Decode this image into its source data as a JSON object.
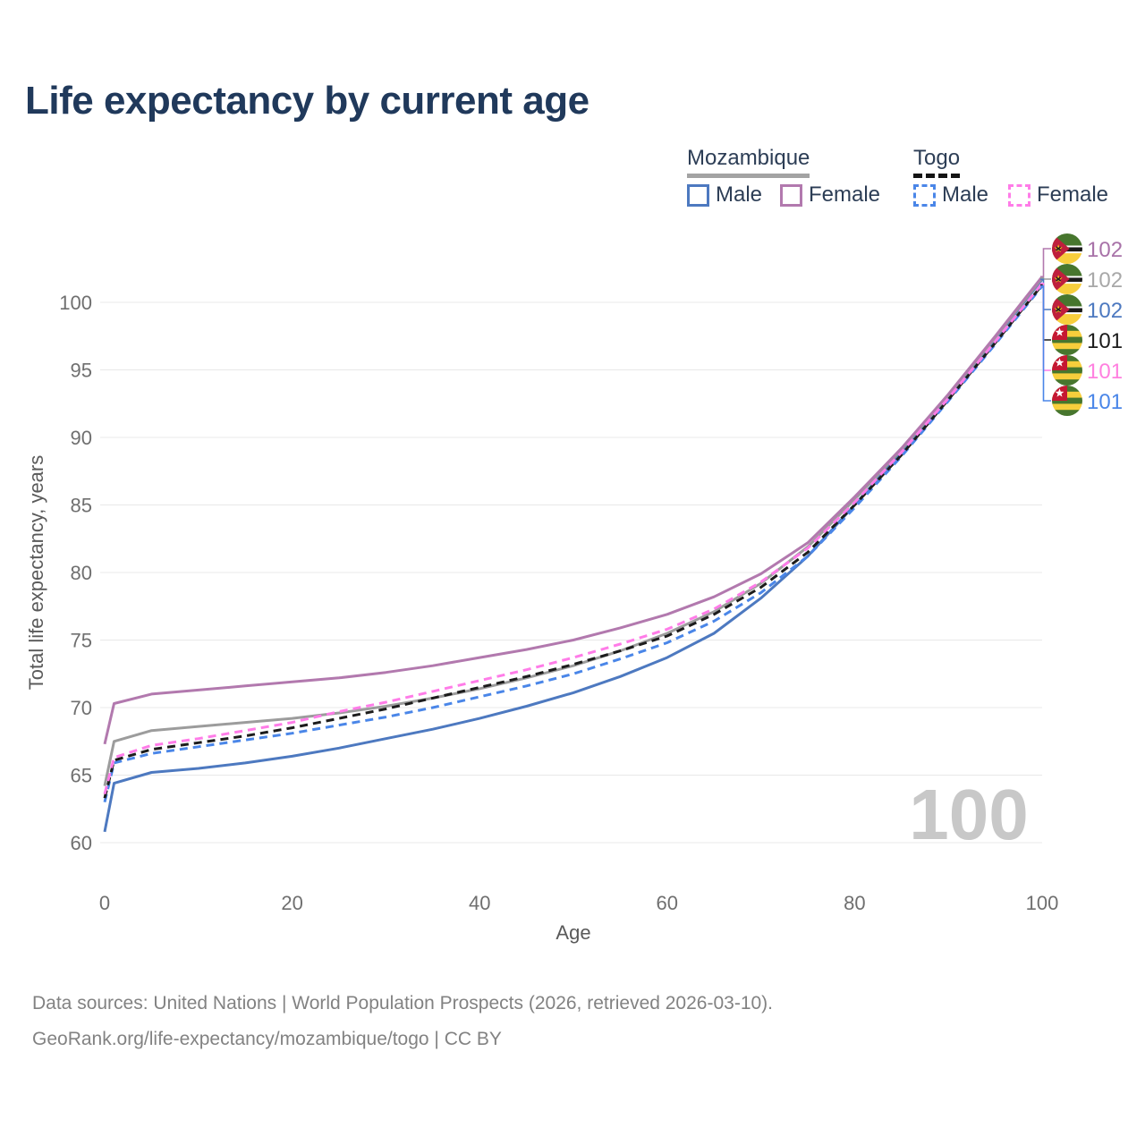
{
  "title": "Life expectancy by current age",
  "legend": {
    "groups": [
      {
        "name": "Mozambique",
        "line_style": "solid",
        "line_color": "#a3a3a3",
        "items": [
          {
            "label": "Male",
            "color": "#4d79c0",
            "dashed": false
          },
          {
            "label": "Female",
            "color": "#b279ae",
            "dashed": false
          }
        ]
      },
      {
        "name": "Togo",
        "line_style": "dashed",
        "line_color": "#141414",
        "items": [
          {
            "label": "Male",
            "color": "#4a86e8",
            "dashed": true
          },
          {
            "label": "Female",
            "color": "#ff7ce8",
            "dashed": true
          }
        ]
      }
    ]
  },
  "watermark": "100",
  "footer": {
    "line1": "Data sources: United Nations | World Population Prospects (2026, retrieved 2026-03-10).",
    "line2": "GeoRank.org/life-expectancy/mozambique/togo | CC BY"
  },
  "chart_data": {
    "type": "line",
    "title": "Life expectancy by current age",
    "xlabel": "Age",
    "ylabel": "Total life expectancy, years",
    "xlim": [
      0,
      100
    ],
    "ylim": [
      60,
      102.5
    ],
    "x_ticks": [
      0,
      20,
      40,
      60,
      80,
      100
    ],
    "y_ticks": [
      60,
      65,
      70,
      75,
      80,
      85,
      90,
      95,
      100
    ],
    "grid": "horizontal-only",
    "legend_position": "top-right",
    "x": [
      0,
      1,
      5,
      10,
      15,
      20,
      25,
      30,
      35,
      40,
      45,
      50,
      55,
      60,
      65,
      70,
      75,
      80,
      85,
      90,
      95,
      100
    ],
    "series": [
      {
        "id": "moz_female",
        "name": "Mozambique Female",
        "country": "mozambique",
        "color": "#b279ae",
        "dashed": false,
        "end_label": "102",
        "end_label_color": "#a872a8",
        "values": [
          67.3,
          70.3,
          71.0,
          71.3,
          71.6,
          71.9,
          72.2,
          72.6,
          73.1,
          73.7,
          74.3,
          75.0,
          75.9,
          76.9,
          78.2,
          79.9,
          82.2,
          85.6,
          89.2,
          93.2,
          97.5,
          101.9
        ]
      },
      {
        "id": "moz_total",
        "name": "Mozambique Total",
        "country": "mozambique",
        "color": "#9c9c9c",
        "dashed": false,
        "end_label": "102",
        "end_label_color": "#a8a8a8",
        "values": [
          64.2,
          67.5,
          68.3,
          68.6,
          68.9,
          69.2,
          69.6,
          70.1,
          70.7,
          71.4,
          72.2,
          73.1,
          74.2,
          75.5,
          77.1,
          79.2,
          81.9,
          85.4,
          89.1,
          93.1,
          97.4,
          101.8
        ]
      },
      {
        "id": "moz_male",
        "name": "Mozambique Male",
        "country": "mozambique",
        "color": "#4d79c0",
        "dashed": false,
        "end_label": "102",
        "end_label_color": "#4d79c0",
        "values": [
          60.8,
          64.4,
          65.2,
          65.5,
          65.9,
          66.4,
          67.0,
          67.7,
          68.4,
          69.2,
          70.1,
          71.1,
          72.3,
          73.7,
          75.5,
          78.1,
          81.2,
          85.0,
          88.9,
          93.0,
          97.3,
          101.7
        ]
      },
      {
        "id": "togo_total",
        "name": "Togo Total",
        "country": "togo",
        "color": "#1c1c1c",
        "dashed": true,
        "end_label": "101",
        "end_label_color": "#1c1c1c",
        "values": [
          63.3,
          66.1,
          66.9,
          67.4,
          67.9,
          68.5,
          69.2,
          69.9,
          70.7,
          71.5,
          72.3,
          73.2,
          74.2,
          75.3,
          76.9,
          78.9,
          81.5,
          85.0,
          88.7,
          92.8,
          97.0,
          101.3
        ]
      },
      {
        "id": "togo_female",
        "name": "Togo Female",
        "country": "togo",
        "color": "#ff7ce8",
        "dashed": true,
        "end_label": "101",
        "end_label_color": "#ff80df",
        "values": [
          63.6,
          66.3,
          67.2,
          67.7,
          68.3,
          68.9,
          69.7,
          70.4,
          71.2,
          72.0,
          72.8,
          73.7,
          74.7,
          75.8,
          77.3,
          79.3,
          81.8,
          85.2,
          88.9,
          92.9,
          97.1,
          101.4
        ]
      },
      {
        "id": "togo_male",
        "name": "Togo Male",
        "country": "togo",
        "color": "#4a86e8",
        "dashed": true,
        "end_label": "101",
        "end_label_color": "#4a86e8",
        "values": [
          63.0,
          65.9,
          66.6,
          67.1,
          67.6,
          68.1,
          68.7,
          69.3,
          70.0,
          70.8,
          71.6,
          72.5,
          73.6,
          74.8,
          76.4,
          78.5,
          81.2,
          84.8,
          88.6,
          92.7,
          96.9,
          101.2
        ]
      }
    ]
  }
}
